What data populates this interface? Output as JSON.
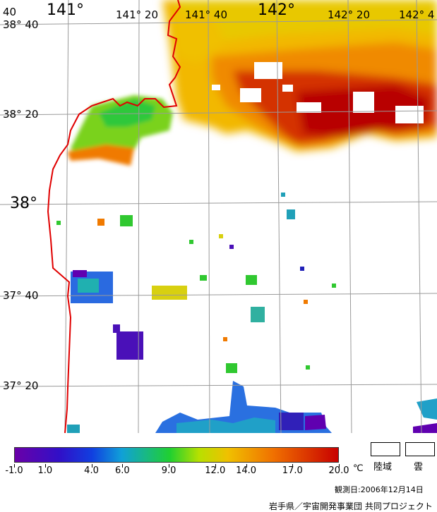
{
  "map": {
    "lon_labels": [
      {
        "text": "141°",
        "size": "big"
      },
      {
        "text": "141° 20",
        "size": "med"
      },
      {
        "text": "141° 40",
        "size": "med"
      },
      {
        "text": "142°",
        "size": "big"
      },
      {
        "text": "142° 20",
        "size": "med"
      },
      {
        "text": "142° 4",
        "size": "med"
      }
    ],
    "lat_labels": [
      {
        "text": "38° 40",
        "size": "med"
      },
      {
        "text": "38° 20",
        "size": "med"
      },
      {
        "text": "38°",
        "size": "big"
      },
      {
        "text": "37° 40",
        "size": "med"
      },
      {
        "text": "37° 20",
        "size": "med"
      }
    ],
    "corner_label": "40",
    "colors": {
      "coastline": "#e00000",
      "grid": "#9a9a9a"
    }
  },
  "colorbar": {
    "min": -1.0,
    "max": 20.0,
    "ticks": [
      "-1.0",
      "1.0",
      "4.0",
      "6.0",
      "9.0",
      "12.0",
      "14.0",
      "17.0",
      "20.0"
    ],
    "unit": "℃"
  },
  "legend": {
    "land": "陸域",
    "cloud": "雲"
  },
  "date_text": "観測日:2006年12月14日",
  "credit_text": "岩手県／宇宙開発事業団 共同プロジェクト"
}
